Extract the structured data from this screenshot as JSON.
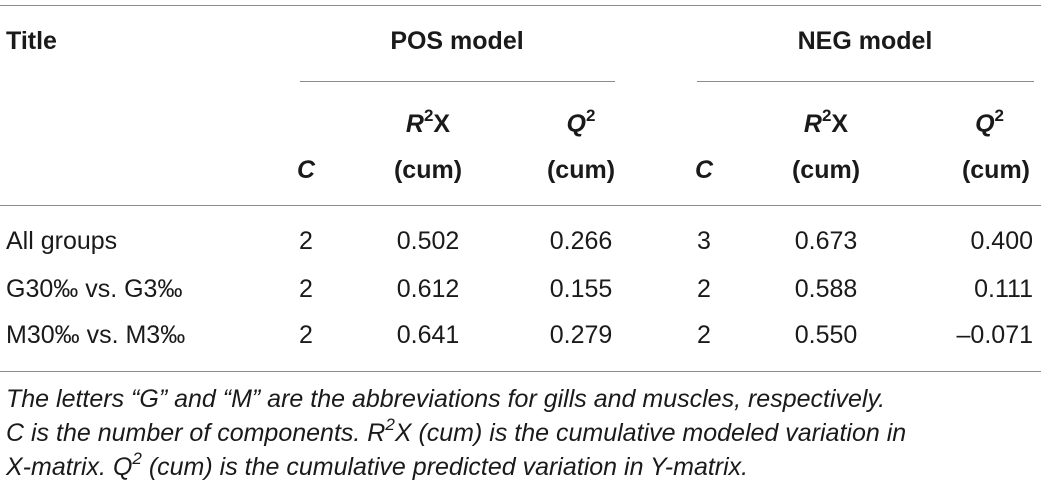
{
  "header": {
    "title_label": "Title",
    "pos_group": "POS model",
    "neg_group": "NEG model",
    "c_label": "C",
    "r2x_main": "R",
    "r2x_sup": "2",
    "r2x_tail": "X",
    "q2_main": "Q",
    "q2_sup": "2",
    "cum_label": "(cum)"
  },
  "rows": [
    {
      "title": "All groups",
      "pos_c": "2",
      "pos_r2x": "0.502",
      "pos_q2": "0.266",
      "neg_c": "3",
      "neg_r2x": "0.673",
      "neg_q2": "0.400"
    },
    {
      "title": "G30‰ vs. G3‰",
      "pos_c": "2",
      "pos_r2x": "0.612",
      "pos_q2": "0.155",
      "neg_c": "2",
      "neg_r2x": "0.588",
      "neg_q2": "0.111"
    },
    {
      "title": "M30‰ vs. M3‰",
      "pos_c": "2",
      "pos_r2x": "0.641",
      "pos_q2": "0.279",
      "neg_c": "2",
      "neg_r2x": "0.550",
      "neg_q2": "–0.071"
    }
  ],
  "footnote": {
    "line1": "The letters “G” and “M” are the abbreviations for gills and muscles, respectively.",
    "line2a": "C is the number of components. R",
    "line2sup": "2",
    "line2b": "X (cum) is the cumulative modeled variation in",
    "line3a": "X-matrix. Q",
    "line3sup": "2",
    "line3b": " (cum) is the cumulative predicted variation in Y-matrix."
  }
}
